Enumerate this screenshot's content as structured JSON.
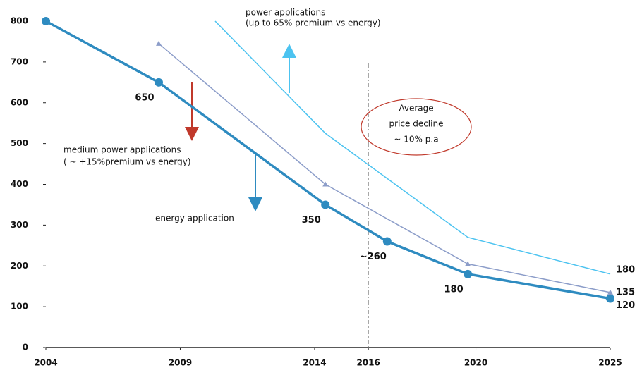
{
  "chart_data": {
    "type": "line",
    "xlim": [
      2004,
      2025
    ],
    "xticks": [
      2004,
      2009,
      2014,
      2016,
      2020,
      2025
    ],
    "ylim": [
      0,
      800
    ],
    "yticks": [
      0,
      100,
      200,
      300,
      400,
      500,
      600,
      700,
      800
    ],
    "reference_x": 2016,
    "series": [
      {
        "name": "energy application",
        "color": "#2e8bc0",
        "marker": "circle",
        "x": [
          2004,
          2008.2,
          2014.4,
          2016.7,
          2019.7,
          2025
        ],
        "values": [
          800,
          650,
          350,
          260,
          180,
          120
        ],
        "value_labels": [
          null,
          "650",
          "350",
          "~260",
          "180",
          "120"
        ]
      },
      {
        "name": "medium power applications",
        "color": "#8c9dc9",
        "marker": "triangle",
        "x": [
          2008.2,
          2014.4,
          2019.7,
          2025
        ],
        "values": [
          745,
          400,
          205,
          135
        ],
        "value_labels": [
          null,
          null,
          null,
          "135"
        ]
      },
      {
        "name": "power applications",
        "color": "#4cc3f0",
        "marker": "none",
        "x": [
          2010.3,
          2014.4,
          2019.7,
          2025
        ],
        "values": [
          800,
          525,
          270,
          180
        ],
        "value_labels": [
          null,
          null,
          null,
          "180"
        ]
      }
    ],
    "annotations": {
      "power": [
        "power applications",
        "(up to 65% premium vs energy)"
      ],
      "medium": [
        "medium power applications",
        "( ~ +15%premium vs energy)"
      ],
      "energy": [
        "energy application"
      ],
      "decline": [
        "Average",
        "price decline",
        "~ 10% p.a"
      ]
    }
  }
}
